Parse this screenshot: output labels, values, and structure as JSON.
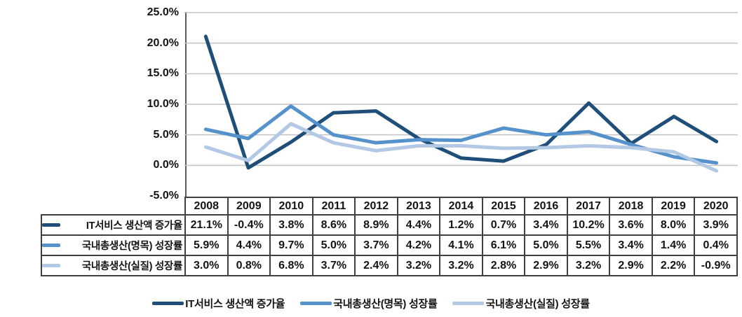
{
  "chart_data": {
    "type": "line",
    "x": [
      "2008",
      "2009",
      "2010",
      "2011",
      "2012",
      "2013",
      "2014",
      "2015",
      "2016",
      "2017",
      "2018",
      "2019",
      "2020"
    ],
    "series": [
      {
        "name": "IT서비스 생산액 증가율",
        "color": "#1F4E79",
        "values": [
          21.1,
          -0.4,
          3.8,
          8.6,
          8.9,
          4.4,
          1.2,
          0.7,
          3.4,
          10.2,
          3.6,
          8.0,
          3.9
        ]
      },
      {
        "name": "국내총생산(명목) 성장률",
        "color": "#5591CB",
        "values": [
          5.9,
          4.4,
          9.7,
          5.0,
          3.7,
          4.2,
          4.1,
          6.1,
          5.0,
          5.5,
          3.4,
          1.4,
          0.4
        ]
      },
      {
        "name": "국내총생산(실질) 성장률",
        "color": "#B3C8E4",
        "values": [
          3.0,
          0.8,
          6.8,
          3.7,
          2.4,
          3.2,
          3.2,
          2.8,
          2.9,
          3.2,
          2.9,
          2.2,
          -0.9
        ]
      }
    ],
    "ylim": [
      -5,
      25
    ],
    "yticks": [
      25,
      20,
      15,
      10,
      5,
      0,
      -5
    ],
    "ytick_labels": [
      "25.0%",
      "20.0%",
      "15.0%",
      "10.0%",
      "5.0%",
      "0.0%",
      "-5.0%"
    ],
    "value_suffix": "%",
    "grid": true,
    "legend_position": "bottom"
  },
  "colors": {
    "gridline": "#C3C3C3",
    "axis": "#5A5A5A",
    "table_border": "#404040",
    "text": "#141414",
    "background": "#FFFFFF"
  },
  "layout_labels": {
    "table_header_note": "years row spans 2008-2020, table cells show series values formatted as 0.0%"
  }
}
